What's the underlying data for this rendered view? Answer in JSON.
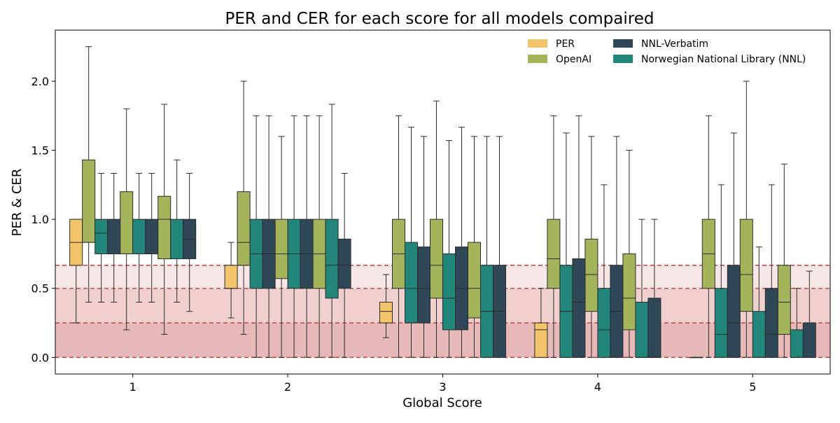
{
  "chart_data": {
    "type": "boxplot",
    "title": "PER and CER for each score for all models compaired",
    "xlabel": "Global Score",
    "ylabel": "PER & CER",
    "ylim": [
      -0.12,
      2.37
    ],
    "yticks": [
      0.0,
      0.5,
      1.0,
      1.5,
      2.0
    ],
    "ytick_labels": [
      "0.0",
      "0.5",
      "1.0",
      "1.5",
      "2.0"
    ],
    "categories": [
      "1",
      "2",
      "3",
      "4",
      "5"
    ],
    "legend_placement": "top-right",
    "legend": [
      {
        "label": "PER",
        "color": "#f3c56a"
      },
      {
        "label": "OpenAI",
        "color": "#a3b45a"
      },
      {
        "label": "NNL-Verbatim",
        "color": "#2f4858"
      },
      {
        "label": "Norwegian National Library (NNL)",
        "color": "#22867a"
      }
    ],
    "thresholds": {
      "lines": [
        0.0,
        0.25,
        0.5,
        0.667
      ],
      "line_color": "#c0504d",
      "bands": [
        {
          "from": 0.0,
          "to": 0.25,
          "color": "#e6b8b7"
        },
        {
          "from": 0.25,
          "to": 0.5,
          "color": "#f0d0cf"
        },
        {
          "from": 0.5,
          "to": 0.667,
          "color": "#f7e6e6"
        }
      ]
    },
    "groups": [
      {
        "category": "1",
        "boxes": [
          {
            "series": "PER",
            "color": "#f3c56a",
            "whislo": 0.25,
            "q1": 0.667,
            "med": 0.833,
            "q3": 1.0,
            "whishi": 1.0
          },
          {
            "series": "OpenAI",
            "color": "#a3b45a",
            "whislo": 0.4,
            "q1": 0.833,
            "med": 0.833,
            "q3": 1.43,
            "whishi": 2.25
          },
          {
            "series": "Norwegian National Library (NNL)",
            "color": "#22867a",
            "whislo": 0.4,
            "q1": 0.75,
            "med": 0.9,
            "q3": 1.0,
            "whishi": 1.333
          },
          {
            "series": "NNL-Verbatim",
            "color": "#2f4858",
            "whislo": 0.4,
            "q1": 0.75,
            "med": 0.75,
            "q3": 1.0,
            "whishi": 1.333
          },
          {
            "series": "OpenAI",
            "color": "#a3b45a",
            "whislo": 0.2,
            "q1": 0.75,
            "med": 0.75,
            "q3": 1.2,
            "whishi": 1.8
          },
          {
            "series": "Norwegian National Library (NNL)",
            "color": "#22867a",
            "whislo": 0.4,
            "q1": 0.75,
            "med": 0.75,
            "q3": 1.0,
            "whishi": 1.333
          },
          {
            "series": "NNL-Verbatim",
            "color": "#2f4858",
            "whislo": 0.4,
            "q1": 0.75,
            "med": 0.75,
            "q3": 1.0,
            "whishi": 1.333
          },
          {
            "series": "OpenAI",
            "color": "#a3b45a",
            "whislo": 0.167,
            "q1": 0.714,
            "med": 1.0,
            "q3": 1.167,
            "whishi": 1.833
          },
          {
            "series": "Norwegian National Library (NNL)",
            "color": "#22867a",
            "whislo": 0.4,
            "q1": 0.714,
            "med": 0.714,
            "q3": 1.0,
            "whishi": 1.43
          },
          {
            "series": "NNL-Verbatim",
            "color": "#2f4858",
            "whislo": 0.333,
            "q1": 0.714,
            "med": 0.857,
            "q3": 1.0,
            "whishi": 1.333
          }
        ]
      },
      {
        "category": "2",
        "boxes": [
          {
            "series": "PER",
            "color": "#f3c56a",
            "whislo": 0.286,
            "q1": 0.5,
            "med": 0.5,
            "q3": 0.667,
            "whishi": 0.833
          },
          {
            "series": "OpenAI",
            "color": "#a3b45a",
            "whislo": 0.167,
            "q1": 0.667,
            "med": 0.833,
            "q3": 1.2,
            "whishi": 2.0
          },
          {
            "series": "Norwegian National Library (NNL)",
            "color": "#22867a",
            "whislo": 0.0,
            "q1": 0.5,
            "med": 0.75,
            "q3": 1.0,
            "whishi": 1.75
          },
          {
            "series": "NNL-Verbatim",
            "color": "#2f4858",
            "whislo": 0.0,
            "q1": 0.5,
            "med": 0.75,
            "q3": 1.0,
            "whishi": 1.75
          },
          {
            "series": "OpenAI",
            "color": "#a3b45a",
            "whislo": 0.0,
            "q1": 0.571,
            "med": 0.75,
            "q3": 1.0,
            "whishi": 1.6
          },
          {
            "series": "Norwegian National Library (NNL)",
            "color": "#22867a",
            "whislo": 0.0,
            "q1": 0.5,
            "med": 0.75,
            "q3": 1.0,
            "whishi": 1.75
          },
          {
            "series": "NNL-Verbatim",
            "color": "#2f4858",
            "whislo": 0.0,
            "q1": 0.5,
            "med": 0.75,
            "q3": 1.0,
            "whishi": 1.75
          },
          {
            "series": "OpenAI",
            "color": "#a3b45a",
            "whislo": 0.0,
            "q1": 0.5,
            "med": 0.75,
            "q3": 1.0,
            "whishi": 1.75
          },
          {
            "series": "Norwegian National Library (NNL)",
            "color": "#22867a",
            "whislo": 0.0,
            "q1": 0.429,
            "med": 0.667,
            "q3": 1.0,
            "whishi": 1.833
          },
          {
            "series": "NNL-Verbatim",
            "color": "#2f4858",
            "whislo": 0.0,
            "q1": 0.5,
            "med": 0.667,
            "q3": 0.857,
            "whishi": 1.333
          }
        ]
      },
      {
        "category": "3",
        "boxes": [
          {
            "series": "PER",
            "color": "#f3c56a",
            "whislo": 0.143,
            "q1": 0.25,
            "med": 0.333,
            "q3": 0.4,
            "whishi": 0.6
          },
          {
            "series": "OpenAI",
            "color": "#a3b45a",
            "whislo": 0.0,
            "q1": 0.5,
            "med": 0.75,
            "q3": 1.0,
            "whishi": 1.75
          },
          {
            "series": "Norwegian National Library (NNL)",
            "color": "#22867a",
            "whislo": 0.0,
            "q1": 0.25,
            "med": 0.5,
            "q3": 0.833,
            "whishi": 1.667
          },
          {
            "series": "NNL-Verbatim",
            "color": "#2f4858",
            "whislo": 0.0,
            "q1": 0.25,
            "med": 0.5,
            "q3": 0.8,
            "whishi": 1.6
          },
          {
            "series": "OpenAI",
            "color": "#a3b45a",
            "whislo": 0.0,
            "q1": 0.429,
            "med": 0.667,
            "q3": 1.0,
            "whishi": 1.857
          },
          {
            "series": "Norwegian National Library (NNL)",
            "color": "#22867a",
            "whislo": 0.0,
            "q1": 0.2,
            "med": 0.429,
            "q3": 0.75,
            "whishi": 1.571
          },
          {
            "series": "NNL-Verbatim",
            "color": "#2f4858",
            "whislo": 0.0,
            "q1": 0.2,
            "med": 0.5,
            "q3": 0.8,
            "whishi": 1.667
          },
          {
            "series": "OpenAI",
            "color": "#a3b45a",
            "whislo": 0.0,
            "q1": 0.286,
            "med": 0.5,
            "q3": 0.833,
            "whishi": 1.6
          },
          {
            "series": "Norwegian National Library (NNL)",
            "color": "#22867a",
            "whislo": 0.0,
            "q1": 0.0,
            "med": 0.333,
            "q3": 0.667,
            "whishi": 1.6
          },
          {
            "series": "NNL-Verbatim",
            "color": "#2f4858",
            "whislo": 0.0,
            "q1": 0.0,
            "med": 0.333,
            "q3": 0.667,
            "whishi": 1.6
          }
        ]
      },
      {
        "category": "4",
        "boxes": [
          {
            "series": "PER",
            "color": "#f3c56a",
            "whislo": 0.0,
            "q1": 0.0,
            "med": 0.2,
            "q3": 0.25,
            "whishi": 0.5
          },
          {
            "series": "OpenAI",
            "color": "#a3b45a",
            "whislo": 0.0,
            "q1": 0.5,
            "med": 0.714,
            "q3": 1.0,
            "whishi": 1.75
          },
          {
            "series": "Norwegian National Library (NNL)",
            "color": "#22867a",
            "whislo": 0.0,
            "q1": 0.0,
            "med": 0.333,
            "q3": 0.667,
            "whishi": 1.625
          },
          {
            "series": "NNL-Verbatim",
            "color": "#2f4858",
            "whislo": 0.0,
            "q1": 0.0,
            "med": 0.4,
            "q3": 0.714,
            "whishi": 1.75
          },
          {
            "series": "OpenAI",
            "color": "#a3b45a",
            "whislo": 0.0,
            "q1": 0.333,
            "med": 0.6,
            "q3": 0.857,
            "whishi": 1.6
          },
          {
            "series": "Norwegian National Library (NNL)",
            "color": "#22867a",
            "whislo": 0.0,
            "q1": 0.0,
            "med": 0.2,
            "q3": 0.5,
            "whishi": 1.25
          },
          {
            "series": "NNL-Verbatim",
            "color": "#2f4858",
            "whislo": 0.0,
            "q1": 0.0,
            "med": 0.333,
            "q3": 0.667,
            "whishi": 1.6
          },
          {
            "series": "OpenAI",
            "color": "#a3b45a",
            "whislo": 0.0,
            "q1": 0.2,
            "med": 0.429,
            "q3": 0.75,
            "whishi": 1.5
          },
          {
            "series": "Norwegian National Library (NNL)",
            "color": "#22867a",
            "whislo": 0.0,
            "q1": 0.0,
            "med": 0.0,
            "q3": 0.4,
            "whishi": 1.0
          },
          {
            "series": "NNL-Verbatim",
            "color": "#2f4858",
            "whislo": 0.0,
            "q1": 0.0,
            "med": 0.0,
            "q3": 0.429,
            "whishi": 1.0
          }
        ]
      },
      {
        "category": "5",
        "boxes": [
          {
            "series": "PER",
            "color": "#f3c56a",
            "whislo": 0.0,
            "q1": 0.0,
            "med": 0.0,
            "q3": 0.0,
            "whishi": 0.0
          },
          {
            "series": "OpenAI",
            "color": "#a3b45a",
            "whislo": 0.0,
            "q1": 0.5,
            "med": 0.75,
            "q3": 1.0,
            "whishi": 1.75
          },
          {
            "series": "Norwegian National Library (NNL)",
            "color": "#22867a",
            "whislo": 0.0,
            "q1": 0.0,
            "med": 0.167,
            "q3": 0.5,
            "whishi": 1.25
          },
          {
            "series": "NNL-Verbatim",
            "color": "#2f4858",
            "whislo": 0.0,
            "q1": 0.0,
            "med": 0.25,
            "q3": 0.667,
            "whishi": 1.625
          },
          {
            "series": "OpenAI",
            "color": "#a3b45a",
            "whislo": 0.0,
            "q1": 0.333,
            "med": 0.6,
            "q3": 1.0,
            "whishi": 2.0
          },
          {
            "series": "Norwegian National Library (NNL)",
            "color": "#22867a",
            "whislo": 0.0,
            "q1": 0.0,
            "med": 0.0,
            "q3": 0.333,
            "whishi": 0.8
          },
          {
            "series": "NNL-Verbatim",
            "color": "#2f4858",
            "whislo": 0.0,
            "q1": 0.0,
            "med": 0.167,
            "q3": 0.5,
            "whishi": 1.25
          },
          {
            "series": "OpenAI",
            "color": "#a3b45a",
            "whislo": 0.0,
            "q1": 0.167,
            "med": 0.4,
            "q3": 0.667,
            "whishi": 1.4
          },
          {
            "series": "Norwegian National Library (NNL)",
            "color": "#22867a",
            "whislo": 0.0,
            "q1": 0.0,
            "med": 0.0,
            "q3": 0.2,
            "whishi": 0.5
          },
          {
            "series": "NNL-Verbatim",
            "color": "#2f4858",
            "whislo": 0.0,
            "q1": 0.0,
            "med": 0.0,
            "q3": 0.25,
            "whishi": 0.625
          }
        ]
      }
    ]
  }
}
